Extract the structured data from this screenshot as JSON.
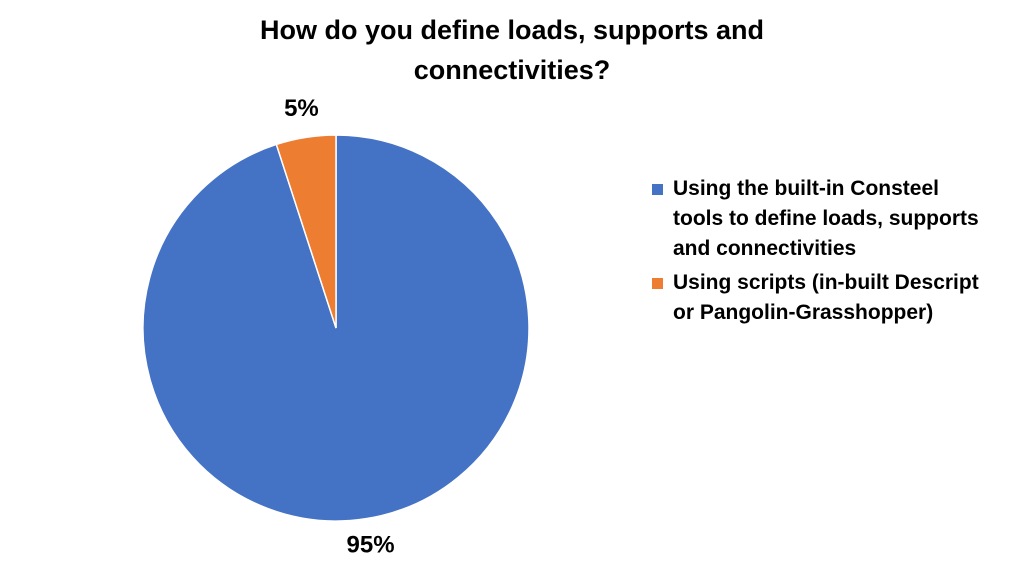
{
  "chart_data": {
    "type": "pie",
    "title": "How do you define loads, supports and connectivities?",
    "categories": [
      "Using the built-in Consteel tools to define loads, supports and connectivities",
      "Using scripts (in-built Descript or Pangolin-Grasshopper)"
    ],
    "values": [
      95,
      5
    ],
    "value_labels": [
      "95%",
      "5%"
    ],
    "colors": [
      "#4472c4",
      "#ed7d31"
    ]
  }
}
